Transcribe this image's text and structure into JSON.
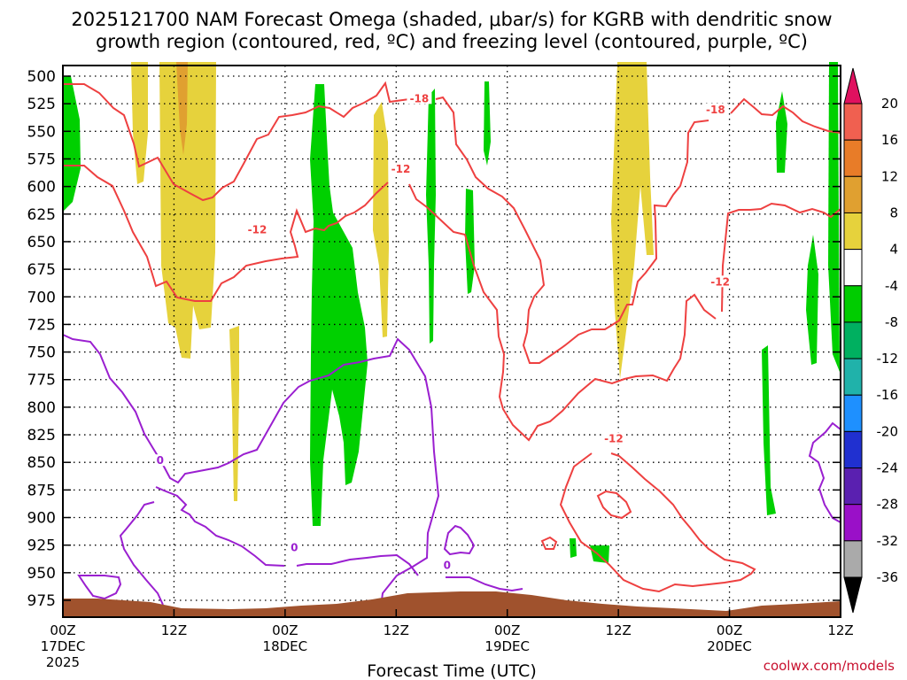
{
  "chart_data": {
    "type": "time-height cross section",
    "title_line1": "2025121700 NAM Forecast Omega (shaded, μbar/s) for KGRB with dendritic snow",
    "title_line2": "growth region (contoured, red, ºC) and freezing level (contoured, purple, ºC)",
    "xlabel": "Forecast Time (UTC)",
    "credit": "coolwx.com/models",
    "y_unit": "hPa",
    "y_range": [
      500,
      985
    ],
    "y_ticks": [
      "500",
      "525",
      "550",
      "575",
      "600",
      "625",
      "650",
      "675",
      "700",
      "725",
      "750",
      "775",
      "800",
      "825",
      "850",
      "875",
      "900",
      "925",
      "950",
      "975"
    ],
    "x_range_hours": [
      0,
      84
    ],
    "x_ticks": [
      {
        "hour": 0,
        "line1": "00Z",
        "line2": "17DEC",
        "line3": "2025"
      },
      {
        "hour": 12,
        "line1": "12Z",
        "line2": "",
        "line3": ""
      },
      {
        "hour": 24,
        "line1": "00Z",
        "line2": "18DEC",
        "line3": ""
      },
      {
        "hour": 36,
        "line1": "12Z",
        "line2": "",
        "line3": ""
      },
      {
        "hour": 48,
        "line1": "00Z",
        "line2": "19DEC",
        "line3": ""
      },
      {
        "hour": 60,
        "line1": "12Z",
        "line2": "",
        "line3": ""
      },
      {
        "hour": 72,
        "line1": "00Z",
        "line2": "20DEC",
        "line3": ""
      },
      {
        "hour": 84,
        "line1": "12Z",
        "line2": "",
        "line3": ""
      }
    ],
    "colorbar": {
      "labels": [
        "20",
        "16",
        "12",
        "8",
        "4",
        "-4",
        "-8",
        "-12",
        "-16",
        "-20",
        "-24",
        "-28",
        "-32",
        "-36"
      ],
      "colors": [
        "#e0115f",
        "#f06050",
        "#e87c28",
        "#e0a030",
        "#e6d23c",
        "#ffffff",
        "#00cc00",
        "#00b060",
        "#20b2aa",
        "#1e90ff",
        "#2030d0",
        "#5a20b0",
        "#9a10c8",
        "#aaaaaa",
        "#000000"
      ]
    },
    "contour_labels": [
      {
        "text": "-18",
        "hour": 38.5,
        "p": 522,
        "color": "red"
      },
      {
        "text": "-18",
        "hour": 70.5,
        "p": 532,
        "color": "red"
      },
      {
        "text": "-12",
        "hour": 36.5,
        "p": 586,
        "color": "red"
      },
      {
        "text": "-12",
        "hour": 21,
        "p": 641,
        "color": "red"
      },
      {
        "text": "-12",
        "hour": 71,
        "p": 688,
        "color": "red"
      },
      {
        "text": "-12",
        "hour": 59.5,
        "p": 830,
        "color": "red"
      },
      {
        "text": "0",
        "hour": 10.5,
        "p": 850,
        "color": "purple"
      },
      {
        "text": "0",
        "hour": 25,
        "p": 929,
        "color": "purple"
      },
      {
        "text": "0",
        "hour": 41.5,
        "p": 945,
        "color": "purple"
      }
    ],
    "omega_regions": [
      {
        "sign": "rising",
        "hour_start": 0.4,
        "hour_end": 1.6,
        "p_top": 500,
        "p_bottom": 590
      },
      {
        "sign": "sinking",
        "hour_start": 7.5,
        "hour_end": 9.0,
        "p_top": 490,
        "p_bottom": 572
      },
      {
        "sign": "sinking",
        "hour_start": 10.5,
        "hour_end": 16.5,
        "p_top": 490,
        "p_bottom": 720
      },
      {
        "sign": "sinking",
        "hour_start": 18.2,
        "hour_end": 19.2,
        "p_top": 690,
        "p_bottom": 860
      },
      {
        "sign": "rising",
        "hour_start": 27.5,
        "hour_end": 33.0,
        "p_top": 510,
        "p_bottom": 890
      },
      {
        "sign": "sinking",
        "hour_start": 34.2,
        "hour_end": 35.7,
        "p_top": 530,
        "p_bottom": 700
      },
      {
        "sign": "rising",
        "hour_start": 39.3,
        "hour_end": 40.2,
        "p_top": 508,
        "p_bottom": 705
      },
      {
        "sign": "rising",
        "hour_start": 43.5,
        "hour_end": 44.3,
        "p_top": 505,
        "p_bottom": 545
      },
      {
        "sign": "rising",
        "hour_start": 43.0,
        "hour_end": 44.0,
        "p_top": 590,
        "p_bottom": 655
      },
      {
        "sign": "sinking",
        "hour_start": 58.6,
        "hour_end": 63.6,
        "p_top": 490,
        "p_bottom": 735
      },
      {
        "sign": "rising",
        "hour_start": 78.0,
        "hour_end": 79.0,
        "p_top": 520,
        "p_bottom": 570
      },
      {
        "sign": "rising",
        "hour_start": 82.0,
        "hour_end": 84.0,
        "p_top": 490,
        "p_bottom": 735
      },
      {
        "sign": "rising",
        "hour_start": 76.0,
        "hour_end": 77.0,
        "p_top": 750,
        "p_bottom": 880
      },
      {
        "sign": "rising",
        "hour_start": 57.5,
        "hour_end": 60.0,
        "p_top": 910,
        "p_bottom": 935
      }
    ]
  }
}
